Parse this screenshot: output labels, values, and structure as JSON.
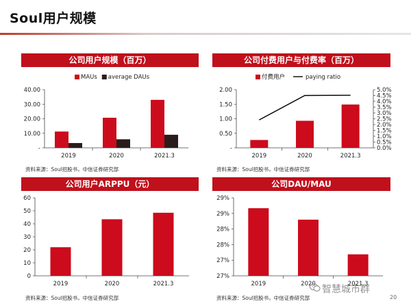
{
  "page": {
    "title": "Soul用户规模",
    "page_number": "20",
    "watermark": "智慧城市群",
    "colors": {
      "red": "#cc0b1c",
      "dark": "#2b1c1c",
      "header": "#c0101c"
    }
  },
  "chart_data": [
    {
      "id": "users",
      "type": "bar",
      "title": "公司用户规模（百万）",
      "categories": [
        "2019",
        "2020",
        "2021.3"
      ],
      "series": [
        {
          "name": "MAUs",
          "values": [
            11.2,
            20.7,
            33.0
          ],
          "color": "#cc0b1c"
        },
        {
          "name": "average DAUs",
          "values": [
            3.3,
            5.9,
            9.0
          ],
          "color": "#2b1c1c"
        }
      ],
      "yticks": [
        "-",
        "10.00",
        "20.00",
        "30.00",
        "40.00"
      ],
      "ylim": [
        0,
        40
      ],
      "legend": "top",
      "source": "资料来源：Soul招股书，中信证券研究部"
    },
    {
      "id": "paying",
      "type": "bar",
      "title": "公司付费用户与付费率（百万）",
      "categories": [
        "2019",
        "2020",
        "2021.3"
      ],
      "series": [
        {
          "name": "付费用户",
          "values": [
            0.27,
            0.93,
            1.49
          ],
          "color": "#cc0b1c"
        }
      ],
      "line": {
        "name": "paying ratio",
        "values": [
          0.024,
          0.045,
          0.0452
        ],
        "color": "#000000"
      },
      "yticks": [
        "-",
        "0.50",
        "1.00",
        "1.50",
        "2.00"
      ],
      "ylim": [
        0,
        2
      ],
      "y2ticks": [
        "0.0%",
        "0.5%",
        "1.0%",
        "1.5%",
        "2.0%",
        "2.5%",
        "3.0%",
        "3.5%",
        "4.0%",
        "4.5%",
        "5.0%"
      ],
      "y2lim": [
        0,
        0.05
      ],
      "legend": "top",
      "source": "资料来源：Soul招股书，中信证券研究部"
    },
    {
      "id": "arppu",
      "type": "bar",
      "title": "公司用户ARPPU（元）",
      "categories": [
        "2019",
        "2020",
        "2021.3"
      ],
      "series": [
        {
          "name": "",
          "values": [
            22,
            43.5,
            48.5
          ],
          "color": "#cc0b1c"
        }
      ],
      "yticks": [
        "0",
        "10",
        "20",
        "30",
        "40",
        "50",
        "60"
      ],
      "ylim": [
        0,
        60
      ],
      "source": "资料来源：Soul招股书，中信证券研究部"
    },
    {
      "id": "daumau",
      "type": "bar",
      "title": "公司DAU/MAU",
      "categories": [
        "2019",
        "2020",
        "2021.3"
      ],
      "series": [
        {
          "name": "",
          "values": [
            0.2895,
            0.2862,
            0.2762
          ],
          "color": "#cc0b1c"
        }
      ],
      "yticks": [
        "27%",
        "27%",
        "28%",
        "28%",
        "29%",
        "29%"
      ],
      "ylim": [
        0.27,
        0.2925
      ],
      "source": "资料来源：Soul招股书，中信证券研究部"
    }
  ]
}
